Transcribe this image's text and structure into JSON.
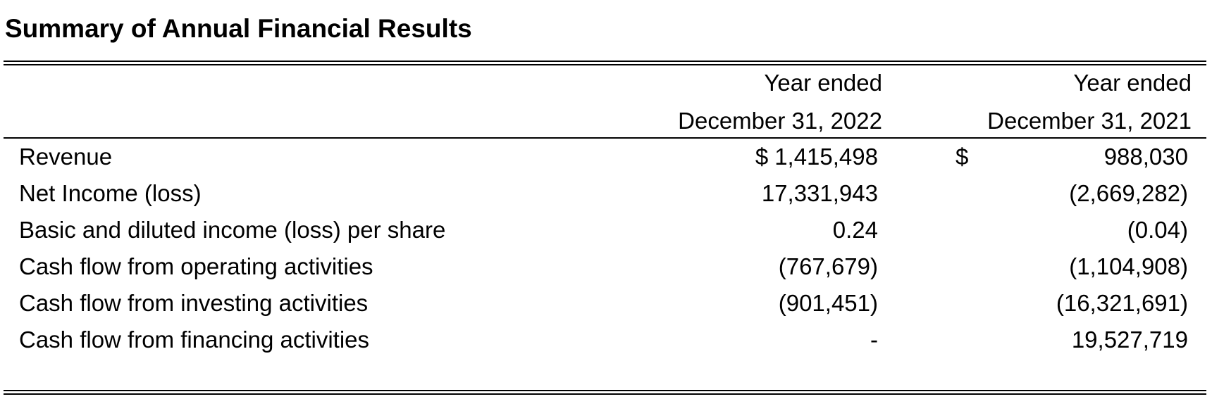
{
  "header": {
    "title": "Summary of Annual Financial Results"
  },
  "table": {
    "columns": [
      [
        "Year ended",
        "December 31, 2022"
      ],
      [
        "Year ended",
        "December 31, 2021"
      ]
    ],
    "rows": [
      [
        "Revenue",
        {
          "symbol": "$",
          "amount": "1,415,498"
        },
        {
          "symbol": "$",
          "amount": "988,030"
        }
      ],
      [
        "Net Income (loss)",
        "17,331,943",
        "(2,669,282)"
      ],
      [
        "Basic and diluted income (loss) per share",
        "0.24",
        "(0.04)"
      ],
      [
        "Cash flow from operating activities",
        "(767,679)",
        "(1,104,908)"
      ],
      [
        "Cash flow from investing activities",
        "(901,451)",
        "(16,321,691)"
      ],
      [
        "Cash flow from financing activities",
        "-",
        "19,527,719"
      ]
    ]
  }
}
